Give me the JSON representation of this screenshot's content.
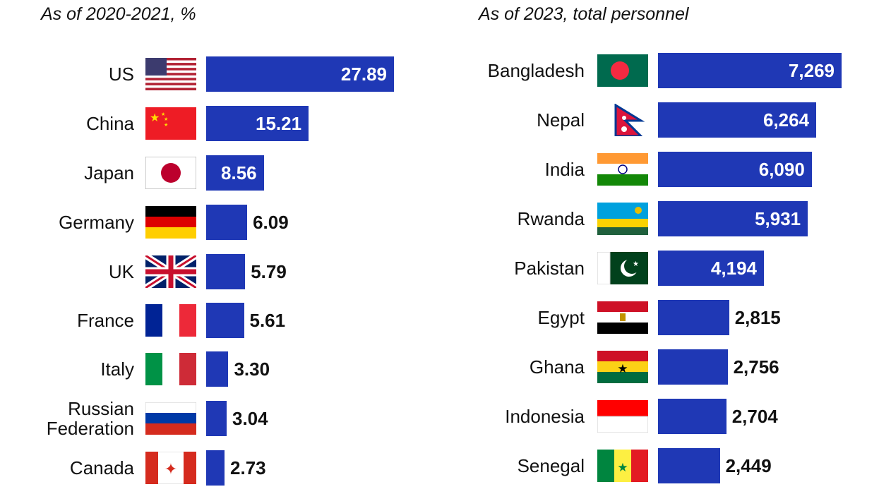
{
  "chart_data": [
    {
      "type": "bar",
      "orientation": "horizontal",
      "subtitle": "As of 2020-2021, %",
      "bar_color": "#1f38b5",
      "categories": [
        "US",
        "China",
        "Japan",
        "Germany",
        "UK",
        "France",
        "Italy",
        "Russian\nFederation",
        "Canada"
      ],
      "flags": [
        "us-flag",
        "china-flag",
        "japan-flag",
        "germany-flag",
        "uk-flag",
        "france-flag",
        "italy-flag",
        "russia-flag",
        "canada-flag"
      ],
      "values": [
        27.89,
        15.21,
        8.56,
        6.09,
        5.79,
        5.61,
        3.3,
        3.04,
        2.73
      ],
      "labels": [
        "27.89",
        "15.21",
        "8.56",
        "6.09",
        "5.79",
        "5.61",
        "3.30",
        "3.04",
        "2.73"
      ]
    },
    {
      "type": "bar",
      "orientation": "horizontal",
      "subtitle": "As of 2023, total personnel",
      "bar_color": "#1f38b5",
      "categories": [
        "Bangladesh",
        "Nepal",
        "India",
        "Rwanda",
        "Pakistan",
        "Egypt",
        "Ghana",
        "Indonesia",
        "Senegal"
      ],
      "flags": [
        "bangladesh-flag",
        "nepal-flag",
        "india-flag",
        "rwanda-flag",
        "pakistan-flag",
        "egypt-flag",
        "ghana-flag",
        "indonesia-flag",
        "senegal-flag"
      ],
      "values": [
        7269,
        6264,
        6090,
        5931,
        4194,
        2815,
        2756,
        2704,
        2449
      ],
      "labels": [
        "7,269",
        "6,264",
        "6,090",
        "5,931",
        "4,194",
        "2,815",
        "2,756",
        "2,704",
        "2,449"
      ]
    }
  ]
}
